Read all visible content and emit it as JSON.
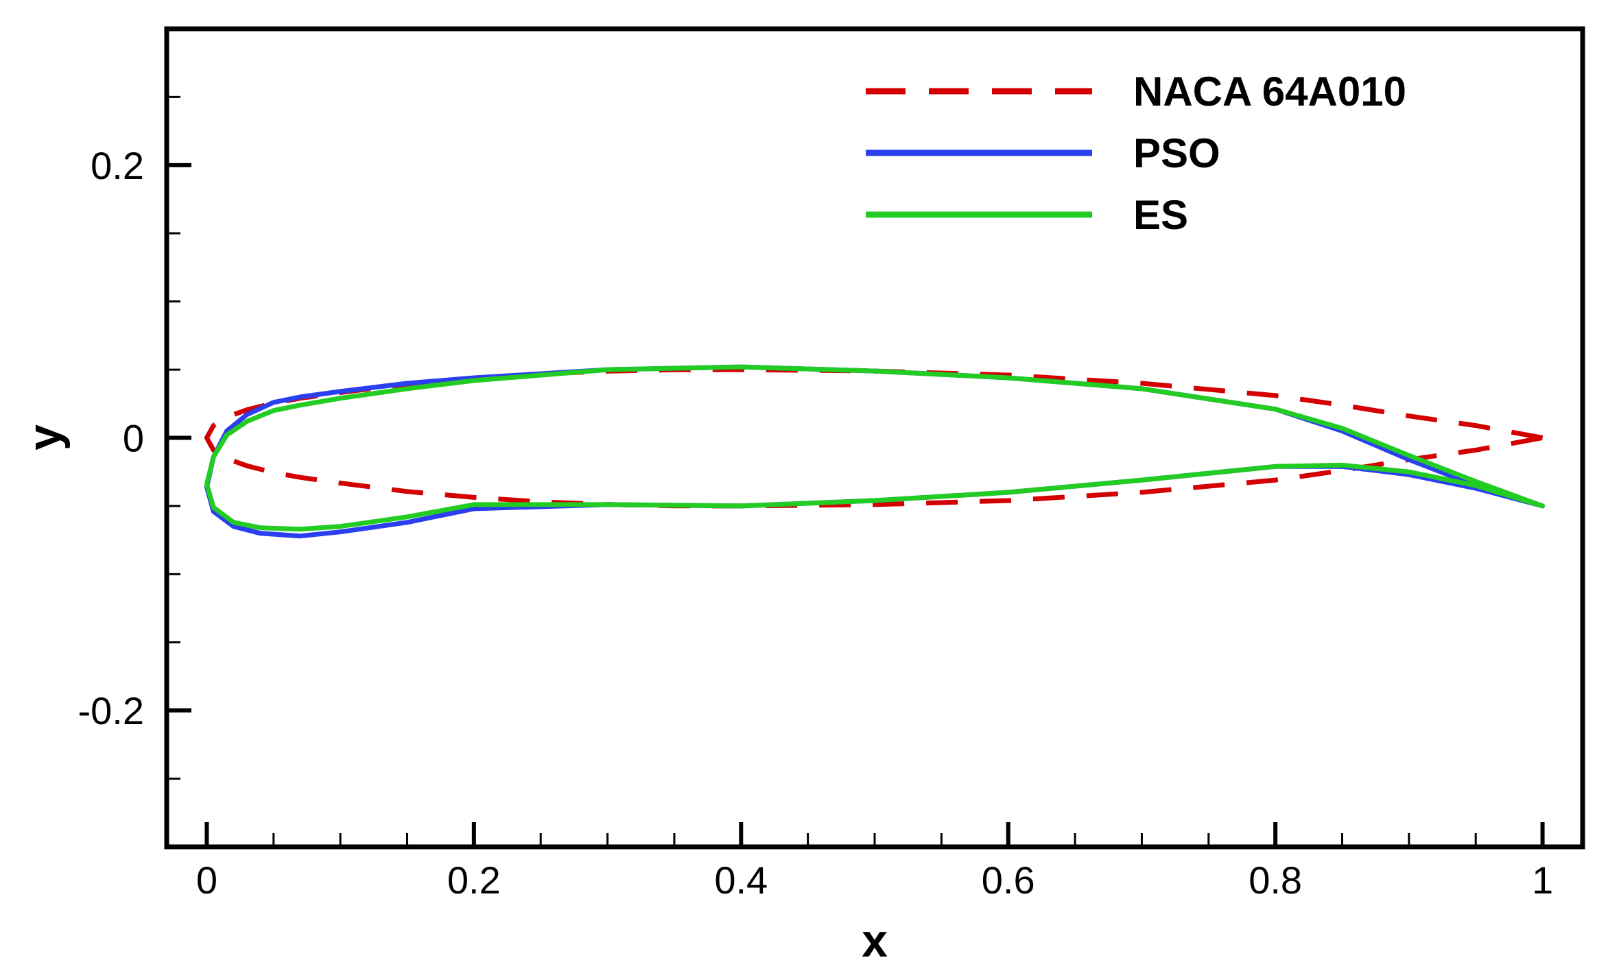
{
  "chart_data": {
    "type": "line",
    "xlabel": "x",
    "ylabel": "y",
    "xlim": [
      -0.03,
      1.03
    ],
    "ylim": [
      -0.3,
      0.3
    ],
    "x_ticks": [
      {
        "value": 0,
        "label": "0"
      },
      {
        "value": 0.2,
        "label": "0.2"
      },
      {
        "value": 0.4,
        "label": "0.4"
      },
      {
        "value": 0.6,
        "label": "0.6"
      },
      {
        "value": 0.8,
        "label": "0.8"
      },
      {
        "value": 1,
        "label": "1"
      }
    ],
    "y_ticks": [
      {
        "value": -0.2,
        "label": "-0.2"
      },
      {
        "value": 0,
        "label": "0"
      },
      {
        "value": 0.2,
        "label": "0.2"
      }
    ],
    "x_minor_step": 0.05,
    "y_minor_step": 0.05,
    "legend_position": "top-right",
    "series": [
      {
        "name": "NACA 64A010",
        "color": "#d40000",
        "style": "dashed",
        "x": [
          1.0,
          0.95,
          0.9,
          0.85,
          0.8,
          0.7,
          0.6,
          0.5,
          0.4,
          0.35,
          0.3,
          0.25,
          0.2,
          0.15,
          0.1,
          0.07,
          0.05,
          0.03,
          0.02,
          0.01,
          0.005,
          0.0,
          0.005,
          0.01,
          0.02,
          0.03,
          0.05,
          0.07,
          0.1,
          0.15,
          0.2,
          0.25,
          0.3,
          0.35,
          0.4,
          0.5,
          0.6,
          0.7,
          0.8,
          0.85,
          0.9,
          0.95,
          1.0
        ],
        "y": [
          0.0,
          0.009,
          0.016,
          0.024,
          0.031,
          0.04,
          0.046,
          0.049,
          0.05,
          0.0499,
          0.0489,
          0.0469,
          0.0437,
          0.0394,
          0.0332,
          0.029,
          0.0255,
          0.0205,
          0.017,
          0.0125,
          0.009,
          0.0,
          -0.009,
          -0.0125,
          -0.017,
          -0.0205,
          -0.0255,
          -0.029,
          -0.0332,
          -0.0394,
          -0.0437,
          -0.0469,
          -0.0489,
          -0.0499,
          -0.05,
          -0.049,
          -0.046,
          -0.04,
          -0.031,
          -0.024,
          -0.016,
          -0.009,
          0.0
        ]
      },
      {
        "name": "PSO",
        "color": "#2b3ff0",
        "style": "solid",
        "x": [
          1.0,
          0.95,
          0.9,
          0.85,
          0.8,
          0.7,
          0.6,
          0.5,
          0.4,
          0.3,
          0.2,
          0.15,
          0.1,
          0.07,
          0.05,
          0.03,
          0.015,
          0.005,
          0.0,
          0.005,
          0.02,
          0.04,
          0.07,
          0.1,
          0.15,
          0.2,
          0.3,
          0.4,
          0.5,
          0.6,
          0.7,
          0.8,
          0.85,
          0.9,
          0.95,
          1.0
        ],
        "y": [
          -0.05,
          -0.035,
          -0.016,
          0.005,
          0.021,
          0.036,
          0.044,
          0.049,
          0.052,
          0.05,
          0.044,
          0.04,
          0.034,
          0.03,
          0.026,
          0.017,
          0.005,
          -0.014,
          -0.036,
          -0.054,
          -0.065,
          -0.07,
          -0.072,
          -0.069,
          -0.062,
          -0.052,
          -0.049,
          -0.05,
          -0.046,
          -0.04,
          -0.031,
          -0.021,
          -0.021,
          -0.027,
          -0.037,
          -0.05
        ]
      },
      {
        "name": "ES",
        "color": "#22cc22",
        "style": "solid",
        "x": [
          1.0,
          0.95,
          0.9,
          0.85,
          0.8,
          0.7,
          0.6,
          0.5,
          0.4,
          0.3,
          0.2,
          0.15,
          0.1,
          0.07,
          0.05,
          0.03,
          0.015,
          0.005,
          0.0,
          0.005,
          0.02,
          0.04,
          0.07,
          0.1,
          0.15,
          0.2,
          0.3,
          0.4,
          0.5,
          0.6,
          0.7,
          0.8,
          0.85,
          0.9,
          0.95,
          1.0
        ],
        "y": [
          -0.05,
          -0.032,
          -0.013,
          0.007,
          0.021,
          0.036,
          0.044,
          0.049,
          0.052,
          0.05,
          0.042,
          0.036,
          0.029,
          0.024,
          0.02,
          0.012,
          0.002,
          -0.014,
          -0.034,
          -0.051,
          -0.062,
          -0.066,
          -0.067,
          -0.065,
          -0.058,
          -0.049,
          -0.049,
          -0.05,
          -0.046,
          -0.04,
          -0.031,
          -0.021,
          -0.02,
          -0.025,
          -0.035,
          -0.05
        ]
      }
    ]
  }
}
